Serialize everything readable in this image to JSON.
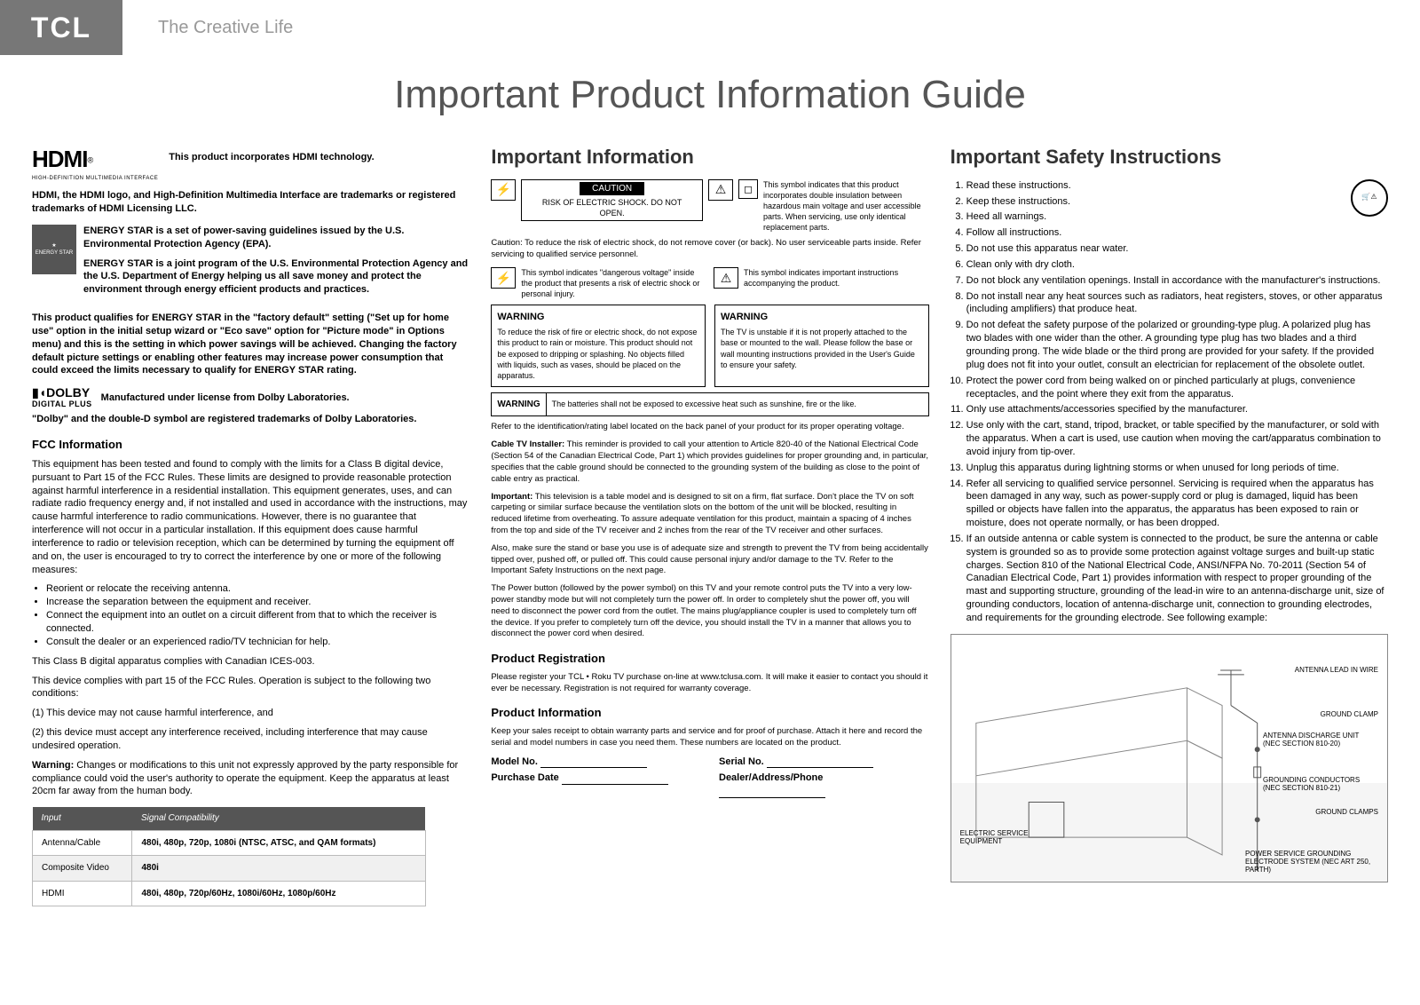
{
  "header": {
    "logo": "TCL",
    "tagline": "The Creative Life"
  },
  "main_title": "Important Product Information Guide",
  "col1": {
    "hdmi_logo": "HDMI",
    "hdmi_sub": "HIGH-DEFINITION MULTIMEDIA INTERFACE",
    "hdmi_reg": "®",
    "hdmi_intro": "This product incorporates HDMI technology.",
    "hdmi_text": "HDMI, the HDMI logo, and High-Definition Multimedia Interface are trademarks or registered trademarks of HDMI Licensing LLC.",
    "estar_badge": "ENERGY STAR",
    "estar_p1": "ENERGY STAR is a set of power-saving guidelines issued by the U.S. Environmental Protection Agency (EPA).",
    "estar_p2": "ENERGY STAR is a joint program of the U.S. Environmental Protection Agency and the U.S. Department of Energy helping us all save money and protect the environment through energy efficient products and practices.",
    "estar_qual": "This product qualifies for ENERGY STAR in the \"factory default\" setting (\"Set up for home use\" option in the initial setup wizard or \"Eco save\" option for \"Picture mode\" in Options menu) and this is the setting in which power savings will be achieved. Changing the factory default picture settings or enabling other features may increase power consumption that could exceed the limits necessary to qualify for ENERGY STAR rating.",
    "dolby_logo_top": "▮◖DOLBY",
    "dolby_logo_bot": "DIGITAL PLUS",
    "dolby_lic": "Manufactured under license from Dolby Laboratories.",
    "dolby_tm": "\"Dolby\" and the double-D symbol are registered trademarks of Dolby Laboratories.",
    "fcc_h": "FCC Information",
    "fcc_p1": "This equipment has been tested and found to comply with the limits for a Class B digital device, pursuant to Part 15 of the FCC Rules. These limits are designed to provide reasonable protection against harmful interference in a residential installation. This equipment generates, uses, and can radiate radio frequency energy and, if not installed and used in accordance with the instructions, may cause harmful interference to radio communications. However, there is no guarantee that interference will not occur in a particular installation. If this equipment does cause harmful interference to radio or television reception, which can be determined by turning the equipment off and on, the user is encouraged to try to correct the interference by one or more of the following measures:",
    "fcc_bullets": [
      "Reorient or relocate the receiving antenna.",
      "Increase the separation between the equipment and receiver.",
      "Connect the equipment into an outlet on a circuit different from that to which the receiver is connected.",
      "Consult the dealer or an experienced radio/TV technician for help."
    ],
    "fcc_p2": "This Class B digital apparatus complies with Canadian ICES-003.",
    "fcc_p3": "This device complies with part 15 of the FCC Rules. Operation is subject to the following two conditions:",
    "fcc_c1": "(1) This device may not cause harmful interference, and",
    "fcc_c2": "(2) this device must accept any interference received, including interference that may cause undesired operation.",
    "fcc_warn_label": "Warning:",
    "fcc_warn": " Changes or modifications to this unit not expressly approved by the party responsible for compliance could void the user's authority to operate the equipment. Keep the apparatus at least 20cm far away from the human body.",
    "sig_table": {
      "headers": [
        "Input",
        "Signal Compatibility"
      ],
      "rows": [
        [
          "Antenna/Cable",
          "480i, 480p, 720p, 1080i (NTSC, ATSC, and QAM formats)"
        ],
        [
          "Composite Video",
          "480i"
        ],
        [
          "HDMI",
          "480i, 480p, 720p/60Hz, 1080i/60Hz, 1080p/60Hz"
        ]
      ]
    }
  },
  "col2": {
    "h": "Important Information",
    "caution_label": "CAUTION",
    "caution_text": "RISK OF ELECTRIC SHOCK. DO NOT OPEN.",
    "dbl_ins": "This symbol indicates that this product incorporates double insulation between hazardous main voltage and user accessible parts. When servicing, use only identical replacement parts.",
    "caution_note": "Caution: To reduce the risk of electric shock, do not remove cover (or back). No user serviceable parts inside. Refer servicing to qualified service personnel.",
    "sym_danger": "This symbol indicates \"dangerous voltage\" inside the product that presents a risk of electric shock or personal injury.",
    "sym_important": "This symbol indicates important instructions accompanying the product.",
    "warn1_h": "WARNING",
    "warn1_t": "To reduce the risk of fire or electric shock, do not expose this product to rain or moisture. This product should not be exposed to dripping or splashing. No objects filled with liquids, such as vases, should be placed on the apparatus.",
    "warn2_h": "WARNING",
    "warn2_t": "The TV is unstable if it is not properly attached to the base or mounted to the wall. Please follow the base or wall mounting instructions provided in the User's Guide to ensure your safety.",
    "warn3_h": "WARNING",
    "warn3_t": "The batteries shall not be exposed to excessive heat such as sunshine, fire or the like.",
    "ref_label": "Refer to the identification/rating label located on the back panel of your product for its proper operating voltage.",
    "cable_label": "Cable TV Installer:",
    "cable_t": " This reminder is provided to call your attention to Article 820-40 of the National Electrical Code (Section 54 of the Canadian Electrical Code, Part 1) which provides guidelines for proper grounding and, in particular, specifies that the cable ground should be connected to the grounding system of the building as close to the point of cable entry as practical.",
    "imp_label": "Important:",
    "imp_t": " This television is a table model and is designed to sit on a firm, flat surface. Don't place the TV on soft carpeting or similar surface because the ventilation slots on the bottom of the unit will be blocked, resulting in reduced lifetime from overheating. To assure adequate ventilation for this product, maintain a spacing of 4 inches from the top and side of the TV receiver and 2 inches from the rear of the TV receiver and other surfaces.",
    "also_t": "Also, make sure the stand or base you use is of adequate size and strength to prevent the TV from being accidentally tipped over, pushed off, or pulled off. This could cause personal injury and/or damage to the TV. Refer to the Important Safety Instructions on the next page.",
    "power_t": "The Power button (followed by the power symbol) on this TV and your remote control puts the TV into a very low-power standby mode but will not completely turn the power off. In order to completely shut the power off, you will need to disconnect the power cord from the outlet. The mains plug/appliance coupler is used to completely turn off the device. If you prefer to completely turn off the device, you should install the TV in a manner that allows you to disconnect the power cord when desired.",
    "reg_h": "Product Registration",
    "reg_t": "Please register your TCL • Roku TV purchase on-line at www.tclusa.com. It will make it easier to contact you should it ever be necessary. Registration is not required for warranty coverage.",
    "pinfo_h": "Product Information",
    "pinfo_t": "Keep your sales receipt to obtain warranty parts and service and for proof of purchase. Attach it here and record the serial and model numbers in case you need them. These numbers are located on the product.",
    "f_model": "Model No.",
    "f_serial": "Serial No.",
    "f_date": "Purchase Date",
    "f_dealer": "Dealer/Address/Phone"
  },
  "col3": {
    "h": "Important Safety Instructions",
    "items": [
      "Read these instructions.",
      "Keep these instructions.",
      "Heed all warnings.",
      "Follow all instructions.",
      "Do not use this apparatus near water.",
      "Clean only with dry cloth.",
      "Do not block any ventilation openings. Install in accordance with the manufacturer's instructions.",
      "Do not install near any heat sources such as radiators, heat registers, stoves, or other apparatus (including amplifiers) that produce heat.",
      "Do not defeat the safety purpose of the polarized or grounding-type plug. A polarized plug has two blades with one wider than the other. A grounding type plug has two blades and a third grounding prong. The wide blade or the third prong are provided for your safety. If the provided plug does not fit into your outlet, consult an electrician for replacement of the obsolete outlet.",
      "Protect the power cord from being walked on or pinched particularly at plugs, convenience receptacles, and the point where they exit from the apparatus.",
      "Only use attachments/accessories specified by the manufacturer.",
      "Use only with the cart, stand, tripod, bracket, or table specified by the manufacturer, or sold with the apparatus. When a cart is used, use caution when moving the cart/apparatus combination to avoid injury from tip-over.",
      "Unplug this apparatus during lightning storms or when unused for long periods of time.",
      "Refer all servicing to qualified service personnel. Servicing is required when the apparatus has been damaged in any way, such as power-supply cord or plug is damaged, liquid has been spilled or objects have fallen into the apparatus, the apparatus has been exposed to rain or moisture, does not operate normally, or has been dropped.",
      "If an outside antenna or cable system is connected to the product, be sure the antenna or cable system is grounded so as to provide some protection against voltage surges and built-up static charges. Section 810 of the National Electrical Code, ANSI/NFPA No. 70-2011 (Section 54 of Canadian Electrical Code, Part 1) provides information with respect to proper grounding of the mast and supporting structure, grounding of the lead-in wire to an antenna-discharge unit, size of grounding conductors, location of antenna-discharge unit, connection to grounding electrodes, and requirements for the grounding electrode. See following example:"
    ],
    "diag": {
      "l1": "ANTENNA LEAD IN WIRE",
      "l2": "GROUND CLAMP",
      "l3": "ANTENNA DISCHARGE UNIT (NEC SECTION 810-20)",
      "l4": "GROUNDING CONDUCTORS (NEC SECTION 810-21)",
      "l5": "GROUND CLAMPS",
      "l6": "POWER SERVICE GROUNDING ELECTRODE SYSTEM (NEC ART 250, PARTH)",
      "l7": "ELECTRIC SERVICE EQUIPMENT"
    }
  }
}
